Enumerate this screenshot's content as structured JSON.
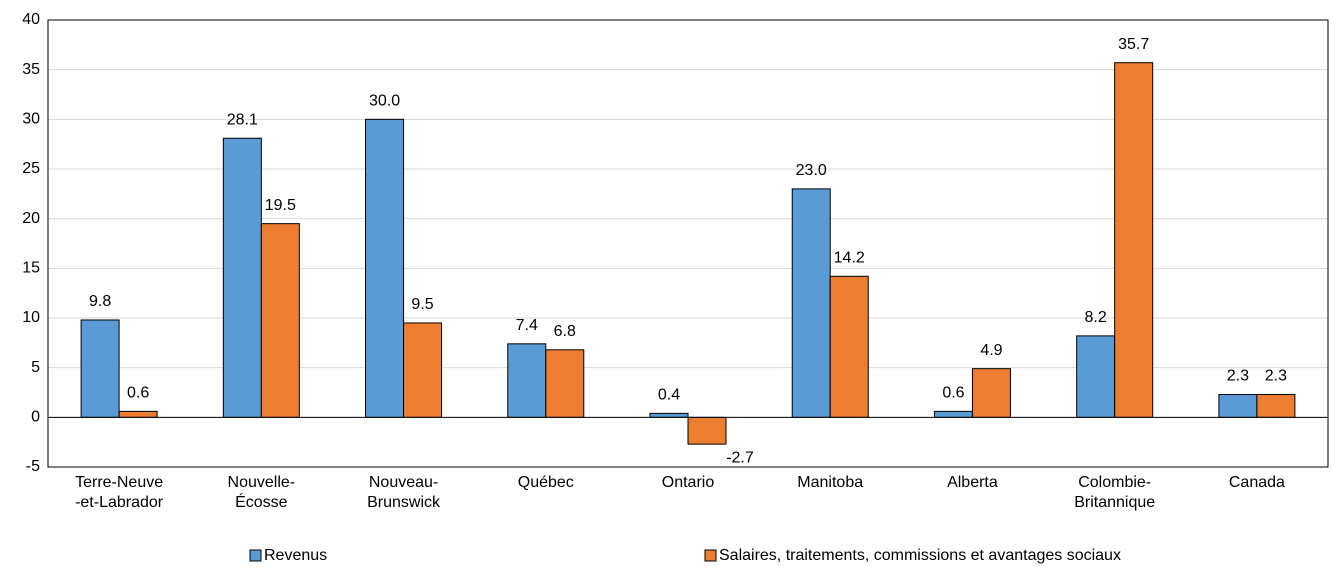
{
  "chart_data": {
    "type": "bar",
    "categories": [
      "Terre-Neuve\n-et-Labrador",
      "Nouvelle-\nÉcosse",
      "Nouveau-\nBrunswick",
      "Québec",
      "Ontario",
      "Manitoba",
      "Alberta",
      "Colombie-\nBritannique",
      "Canada"
    ],
    "series": [
      {
        "name": "Revenus",
        "color": "#5b9bd5",
        "values": [
          9.8,
          28.1,
          30.0,
          7.4,
          0.4,
          23.0,
          0.6,
          8.2,
          2.3
        ],
        "value_labels": [
          "9.8",
          "28.1",
          "30.0",
          "7.4",
          "0.4",
          "23.0",
          "0.6",
          "8.2",
          "2.3"
        ]
      },
      {
        "name": "Salaires, traitements, commissions et avantages sociaux",
        "color": "#ed7d31",
        "values": [
          0.6,
          19.5,
          9.5,
          6.8,
          -2.7,
          14.2,
          4.9,
          35.7,
          2.3
        ],
        "value_labels": [
          "0.6",
          "19.5",
          "9.5",
          "6.8",
          "-2.7",
          "14.2",
          "4.9",
          "35.7",
          "2.3"
        ]
      }
    ],
    "ylim": [
      -5,
      40
    ],
    "yticks": [
      -5,
      0,
      5,
      10,
      15,
      20,
      25,
      30,
      35,
      40
    ],
    "grid": true
  }
}
